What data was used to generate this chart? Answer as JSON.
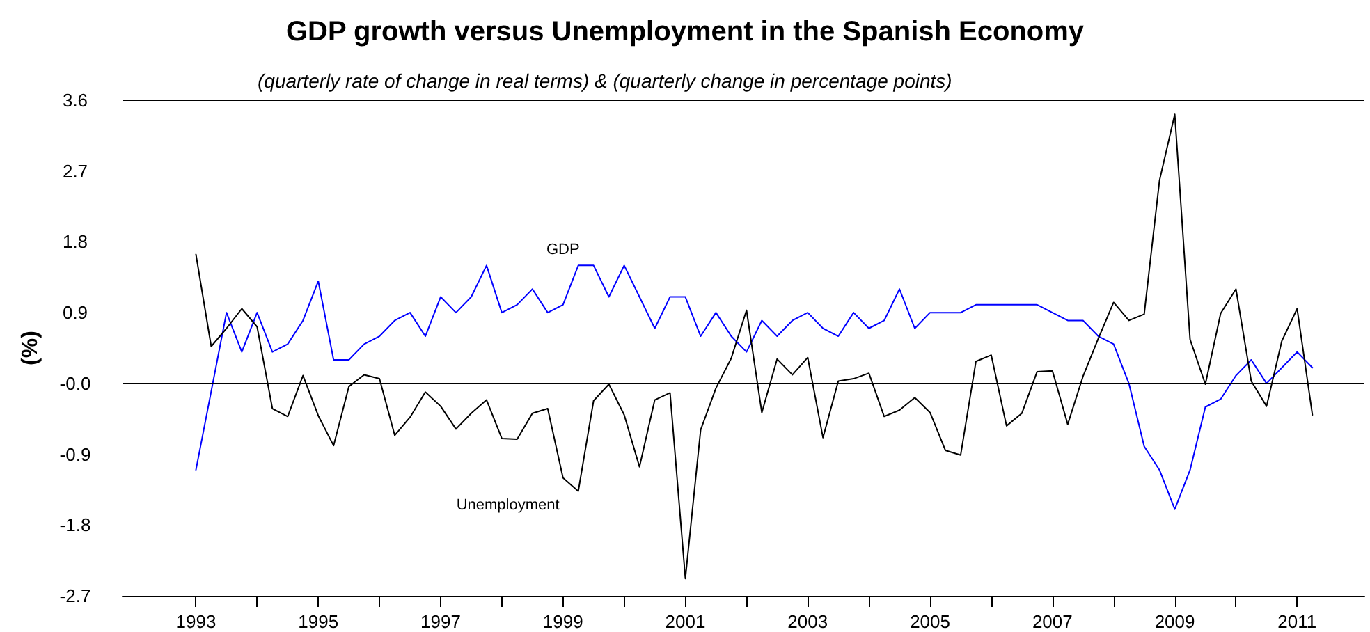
{
  "chart_data": {
    "type": "line",
    "title": "GDP growth versus Unemployment in the Spanish Economy",
    "subtitle": "(quarterly rate of change in real terms) & (quarterly change in percentage points)",
    "ylabel": "(%)",
    "x": [
      1993,
      1993.25,
      1993.5,
      1993.75,
      1994,
      1994.25,
      1994.5,
      1994.75,
      1995,
      1995.25,
      1995.5,
      1995.75,
      1996,
      1996.25,
      1996.5,
      1996.75,
      1997,
      1997.25,
      1997.5,
      1997.75,
      1998,
      1998.25,
      1998.5,
      1998.75,
      1999,
      1999.25,
      1999.5,
      1999.75,
      2000,
      2000.25,
      2000.5,
      2000.75,
      2001,
      2001.25,
      2001.5,
      2001.75,
      2002,
      2002.25,
      2002.5,
      2002.75,
      2003,
      2003.25,
      2003.5,
      2003.75,
      2004,
      2004.25,
      2004.5,
      2004.75,
      2005,
      2005.25,
      2005.5,
      2005.75,
      2006,
      2006.25,
      2006.5,
      2006.75,
      2007,
      2007.25,
      2007.5,
      2007.75,
      2008,
      2008.25,
      2008.5,
      2008.75,
      2009,
      2009.25,
      2009.5,
      2009.75,
      2010,
      2010.25,
      2010.5,
      2010.75,
      2011,
      2011.25
    ],
    "series": [
      {
        "name": "GDP",
        "color": "#0000ff",
        "values": [
          -1.1,
          -0.1,
          0.9,
          0.4,
          0.9,
          0.4,
          0.5,
          0.8,
          1.3,
          0.3,
          0.3,
          0.5,
          0.6,
          0.8,
          0.9,
          0.6,
          1.1,
          0.9,
          1.1,
          1.5,
          0.9,
          1.0,
          1.2,
          0.9,
          1.0,
          1.5,
          1.5,
          1.1,
          1.5,
          1.1,
          0.7,
          1.1,
          1.1,
          0.6,
          0.9,
          0.6,
          0.4,
          0.8,
          0.6,
          0.8,
          0.9,
          0.7,
          0.6,
          0.9,
          0.7,
          0.8,
          1.2,
          0.7,
          0.9,
          0.9,
          0.9,
          1.0,
          1.0,
          1.0,
          1.0,
          1.0,
          0.9,
          0.8,
          0.8,
          0.6,
          0.5,
          0.0,
          -0.8,
          -1.1,
          -1.6,
          -1.1,
          -0.3,
          -0.2,
          0.1,
          0.3,
          0.0,
          0.2,
          0.4,
          0.2
        ]
      },
      {
        "name": "Unemployment",
        "color": "#000000",
        "values": [
          1.64,
          0.47,
          0.7,
          0.95,
          0.72,
          -0.32,
          -0.42,
          0.1,
          -0.41,
          -0.79,
          -0.04,
          0.11,
          0.06,
          -0.66,
          -0.43,
          -0.11,
          -0.29,
          -0.58,
          -0.38,
          -0.21,
          -0.7,
          -0.71,
          -0.38,
          -0.32,
          -1.2,
          -1.37,
          -0.22,
          -0.01,
          -0.4,
          -1.06,
          -0.21,
          -0.12,
          -2.48,
          -0.59,
          -0.06,
          0.32,
          0.93,
          -0.37,
          0.31,
          0.11,
          0.33,
          -0.69,
          0.03,
          0.06,
          0.13,
          -0.42,
          -0.34,
          -0.18,
          -0.37,
          -0.85,
          -0.91,
          0.28,
          0.36,
          -0.54,
          -0.38,
          0.15,
          0.16,
          -0.52,
          0.09,
          0.57,
          1.03,
          0.8,
          0.88,
          2.58,
          3.42,
          0.56,
          -0.01,
          0.89,
          1.2,
          0.03,
          -0.29,
          0.54,
          0.95,
          -0.4
        ]
      }
    ],
    "xlim": [
      1991.8,
      2012.1
    ],
    "xticks": [
      1993,
      {
        "value": 1994,
        "label": null
      },
      1995,
      {
        "value": 1996,
        "label": null
      },
      1997,
      {
        "value": 1998,
        "label": null
      },
      1999,
      {
        "value": 2000,
        "label": null
      },
      2001,
      {
        "value": 2002,
        "label": null
      },
      2003,
      {
        "value": 2004,
        "label": null
      },
      2005,
      {
        "value": 2006,
        "label": null
      },
      2007,
      {
        "value": 2008,
        "label": null
      },
      2009,
      {
        "value": 2010,
        "label": null
      },
      2011
    ],
    "ylim": [
      -2.7,
      3.6
    ],
    "yticks": [
      -2.7,
      -1.8,
      -0.9,
      {
        "value": 0,
        "label": "-0.0"
      },
      0.9,
      1.8,
      2.7,
      3.6
    ],
    "ref_lines": [
      {
        "axis": "y",
        "value": 0,
        "color": "#000000"
      }
    ],
    "grid": false,
    "legend": false,
    "marker": "none",
    "line_style": "solid"
  }
}
